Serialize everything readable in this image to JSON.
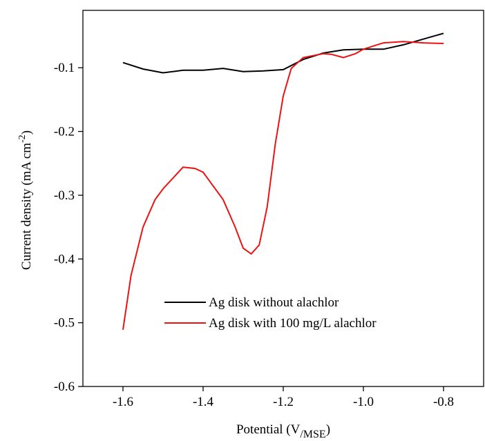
{
  "chart_data": {
    "type": "line",
    "x_label": [
      "Potential (V",
      "/MSE",
      ")"
    ],
    "y_label": [
      "Current density (mA cm",
      "-2",
      ")"
    ],
    "xlim": [
      -1.7,
      -0.7
    ],
    "ylim": [
      -0.6,
      -0.01
    ],
    "xticks": [
      -1.6,
      -1.4,
      -1.2,
      {
        "value": -1,
        "label": "-1.0"
      },
      -0.8
    ],
    "yticks": [
      -0.6,
      -0.5,
      -0.4,
      -0.3,
      -0.2,
      -0.1
    ],
    "legend": "lower right",
    "series": [
      {
        "name": "Ag disk without alachlor",
        "color": "#000000",
        "x": [
          -1.6,
          -1.55,
          -1.5,
          -1.45,
          -1.4,
          -1.35,
          -1.3,
          -1.25,
          -1.2,
          -1.15,
          -1.1,
          -1.05,
          -1.0,
          -0.95,
          -0.9,
          -0.85,
          -0.8
        ],
        "values": [
          -0.092,
          -0.102,
          -0.108,
          -0.104,
          -0.104,
          -0.101,
          -0.106,
          -0.105,
          -0.103,
          -0.087,
          -0.077,
          -0.072,
          -0.071,
          -0.071,
          -0.064,
          -0.055,
          -0.046
        ]
      },
      {
        "name": "Ag disk with 100 mg/L alachlor",
        "color": "#ee1111",
        "x": [
          -1.6,
          -1.58,
          -1.55,
          -1.52,
          -1.5,
          -1.45,
          -1.42,
          -1.4,
          -1.35,
          -1.32,
          -1.3,
          -1.28,
          -1.26,
          -1.24,
          -1.22,
          -1.2,
          -1.18,
          -1.15,
          -1.1,
          -1.08,
          -1.05,
          -1.02,
          -1.0,
          -0.95,
          -0.9,
          -0.85,
          -0.8
        ],
        "values": [
          -0.511,
          -0.426,
          -0.35,
          -0.307,
          -0.29,
          -0.256,
          -0.258,
          -0.264,
          -0.307,
          -0.35,
          -0.383,
          -0.392,
          -0.378,
          -0.318,
          -0.22,
          -0.144,
          -0.101,
          -0.084,
          -0.078,
          -0.079,
          -0.084,
          -0.078,
          -0.071,
          -0.061,
          -0.059,
          -0.061,
          -0.062
        ]
      }
    ]
  }
}
